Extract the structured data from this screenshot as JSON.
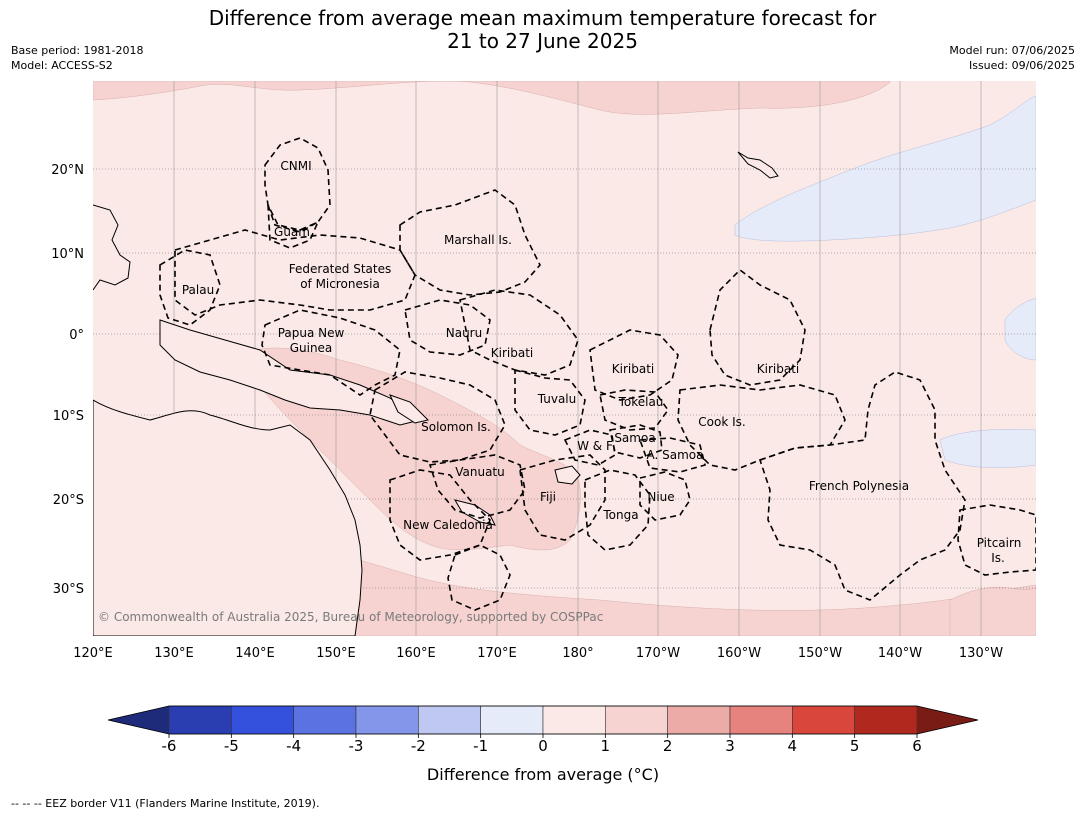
{
  "title": {
    "line1": "Difference from average mean maximum temperature forecast for",
    "line2": "21 to 27 June 2025"
  },
  "meta_left": {
    "base_period": "Base period: 1981-2018",
    "model": "Model: ACCESS-S2"
  },
  "meta_right": {
    "model_run": "Model run: 07/06/2025",
    "issued": "Issued: 09/06/2025"
  },
  "map": {
    "lon_labels": [
      "120°E",
      "130°E",
      "140°E",
      "150°E",
      "160°E",
      "170°E",
      "180°",
      "170°W",
      "160°W",
      "150°W",
      "140°W",
      "130°W"
    ],
    "lat_labels": [
      "20°N",
      "10°N",
      "0°",
      "10°S",
      "20°S",
      "30°S"
    ],
    "colors": {
      "ocean_base": "#fbe9e8",
      "anom_1_2": "#f6d3d1",
      "anom_2_3": "#edaba7",
      "anom_m1_0": "#e6ebfa",
      "border": "#000000"
    },
    "places": [
      {
        "name": "CNMI"
      },
      {
        "name": "Guam"
      },
      {
        "name": "Marshall Is."
      },
      {
        "name": "Federated States"
      },
      {
        "name": "of Micronesia"
      },
      {
        "name": "Palau"
      },
      {
        "name": "Papua New"
      },
      {
        "name": "Guinea"
      },
      {
        "name": "Nauru"
      },
      {
        "name": "Kiribati"
      },
      {
        "name": "Kiribati"
      },
      {
        "name": "Kiribati"
      },
      {
        "name": "Tuvalu"
      },
      {
        "name": "Tokelau"
      },
      {
        "name": "Cook Is."
      },
      {
        "name": "Solomon Is."
      },
      {
        "name": "Samoa"
      },
      {
        "name": "W & F"
      },
      {
        "name": "A. Samoa"
      },
      {
        "name": "Vanuatu"
      },
      {
        "name": "Fiji"
      },
      {
        "name": "Niue"
      },
      {
        "name": "French Polynesia"
      },
      {
        "name": "Tonga"
      },
      {
        "name": "New Caledonia"
      },
      {
        "name": "Pitcairn"
      },
      {
        "name": "Is."
      }
    ],
    "copyright": "© Commonwealth of Australia 2025, Bureau of Meteorology, supported by COSPPac"
  },
  "colorbar": {
    "ticks": [
      "-6",
      "-5",
      "-4",
      "-3",
      "-2",
      "-1",
      "0",
      "1",
      "2",
      "3",
      "4",
      "5",
      "6"
    ],
    "colors": [
      "#2a3eb1",
      "#3451de",
      "#5b72e2",
      "#8496ea",
      "#bfc7f3",
      "#e6ebfa",
      "#fbe9e8",
      "#f6d3d1",
      "#edaba7",
      "#e6837e",
      "#d9463c",
      "#b0281e"
    ],
    "under_color": "#1e2a7a",
    "over_color": "#7a1c16",
    "label": "Difference from average (°C)"
  },
  "footnote": "--  --  -- EEZ border V11 (Flanders Marine Institute, 2019)."
}
